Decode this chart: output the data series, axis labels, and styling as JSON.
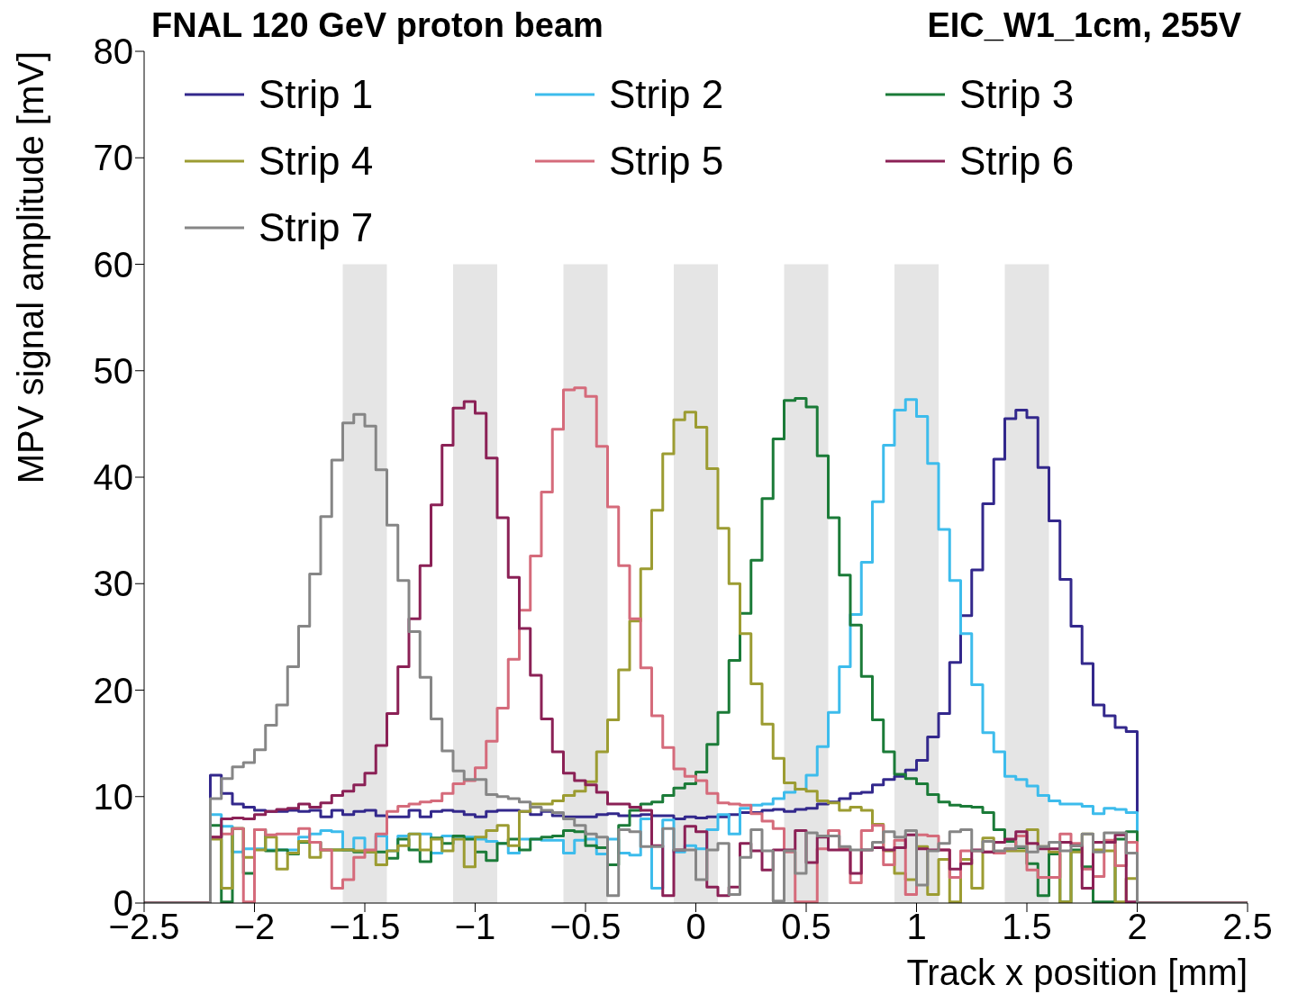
{
  "chart_data": {
    "type": "step",
    "title": "FNAL 120 GeV proton beam",
    "subtitle": "EIC_W1_1cm, 255V",
    "xlabel": "Track x position [mm]",
    "ylabel": "MPV signal amplitude [mV]",
    "x": [
      -2.5,
      -2.2,
      -2.15,
      -2.1,
      -2.05,
      -2.0,
      -1.95,
      -1.9,
      -1.85,
      -1.8,
      -1.75,
      -1.7,
      -1.65,
      -1.6,
      -1.55,
      -1.5,
      -1.45,
      -1.4,
      -1.35,
      -1.3,
      -1.25,
      -1.2,
      -1.15,
      -1.1,
      -1.05,
      -1.0,
      -0.95,
      -0.9,
      -0.85,
      -0.8,
      -0.75,
      -0.7,
      -0.65,
      -0.6,
      -0.55,
      -0.5,
      -0.45,
      -0.4,
      -0.35,
      -0.3,
      -0.25,
      -0.2,
      -0.15,
      -0.1,
      -0.05,
      0,
      0.05,
      0.1,
      0.15,
      0.2,
      0.25,
      0.3,
      0.35,
      0.4,
      0.45,
      0.5,
      0.55,
      0.6,
      0.65,
      0.7,
      0.75,
      0.8,
      0.85,
      0.9,
      0.95,
      1.0,
      1.05,
      1.1,
      1.15,
      1.2,
      1.25,
      1.3,
      1.35,
      1.4,
      1.45,
      1.5,
      1.55,
      1.6,
      1.65,
      1.7,
      1.75,
      1.8,
      1.85,
      1.9,
      1.95,
      2.0,
      2.5
    ],
    "series": [
      {
        "name": "Strip 1",
        "color": "#33288c",
        "values": [
          0,
          12.0,
          10.3,
          9.3,
          9.0,
          8.7,
          8.6,
          8.6,
          8.7,
          8.6,
          8.7,
          8.1,
          8.7,
          8.3,
          8.6,
          8.7,
          8.2,
          8.1,
          8.1,
          8.7,
          8.1,
          8.6,
          8.7,
          8.6,
          8.3,
          8.1,
          8.6,
          8.7,
          8.7,
          8.6,
          8.3,
          8.6,
          8.2,
          8.1,
          8.1,
          8.1,
          8.3,
          8.4,
          8.2,
          8.2,
          8.3,
          8.2,
          8.2,
          7.9,
          8.1,
          8.0,
          8.1,
          8.1,
          8.3,
          8.5,
          8.5,
          8.7,
          8.8,
          8.6,
          8.8,
          8.9,
          9.3,
          9.5,
          9.8,
          10.3,
          10.4,
          11.1,
          11.6,
          11.9,
          12.5,
          13.4,
          15.6,
          17.8,
          22.6,
          27.0,
          31.3,
          37.5,
          41.7,
          45.5,
          46.3,
          45.6,
          40.9,
          35.9,
          30.4,
          26.0,
          22.5,
          18.6,
          17.6,
          16.5,
          16.1,
          0,
          0
        ]
      },
      {
        "name": "Strip 2",
        "color": "#3dbcec",
        "values": [
          0,
          8.3,
          7.2,
          4.8,
          5.1,
          5.1,
          5.0,
          5.0,
          5.0,
          6.2,
          6.5,
          6.8,
          6.7,
          5.0,
          6.1,
          4.9,
          6.3,
          4.9,
          6.3,
          6.5,
          6.5,
          4.7,
          6.3,
          6.2,
          6.2,
          6.0,
          5.8,
          5.6,
          4.7,
          6.0,
          6.0,
          5.9,
          5.9,
          4.7,
          5.9,
          6.0,
          4.6,
          6.0,
          4.7,
          4.5,
          7.9,
          1.4,
          7.8,
          4.8,
          5.4,
          5.1,
          6.9,
          8.3,
          6.5,
          8.9,
          9.2,
          9.3,
          9.8,
          10.4,
          10.7,
          12.0,
          14.7,
          17.9,
          22.2,
          27.1,
          32.0,
          37.7,
          43.0,
          46.3,
          47.3,
          45.7,
          41.3,
          35.1,
          30.3,
          25.3,
          20.5,
          16.0,
          14.2,
          11.9,
          11.6,
          11.0,
          10.1,
          9.6,
          9.3,
          9.3,
          9.1,
          8.4,
          8.9,
          8.8,
          8.5,
          0,
          0
        ]
      },
      {
        "name": "Strip 3",
        "color": "#1b7b38",
        "values": [
          0,
          7.3,
          0.1,
          7.0,
          2.8,
          6.9,
          4.9,
          5.0,
          4.6,
          5.7,
          5.7,
          5.0,
          5.0,
          5.0,
          4.8,
          4.8,
          4.8,
          4.2,
          6.0,
          5.0,
          3.9,
          6.1,
          5.6,
          6.3,
          6.0,
          4.8,
          4.0,
          5.6,
          6.0,
          5.0,
          6.0,
          6.2,
          6.3,
          6.8,
          6.7,
          5.4,
          5.2,
          3.6,
          7.3,
          8.7,
          9.3,
          9.5,
          10.1,
          10.8,
          11.2,
          12.3,
          14.9,
          17.9,
          22.8,
          27.2,
          32.2,
          38.0,
          43.6,
          47.2,
          47.4,
          46.6,
          42.0,
          36.2,
          30.8,
          26.1,
          21.3,
          17.2,
          14.2,
          12.1,
          11.7,
          11.2,
          10.2,
          9.5,
          9.2,
          9.1,
          9.0,
          8.5,
          6.9,
          5.8,
          5.2,
          3.7,
          0.7,
          4.6,
          0.1,
          5.0,
          3.4,
          0.1,
          0.1,
          6.0,
          6.7,
          0,
          0
        ]
      },
      {
        "name": "Strip 4",
        "color": "#9c9c32",
        "values": [
          0,
          6.0,
          1.4,
          7.0,
          4.3,
          5.0,
          6.2,
          3.2,
          4.7,
          5.8,
          4.3,
          5.0,
          5.0,
          5.0,
          4.9,
          4.8,
          3.6,
          4.9,
          5.4,
          6.5,
          5.0,
          6.0,
          4.9,
          6.0,
          3.4,
          6.2,
          6.8,
          7.3,
          5.4,
          8.6,
          9.3,
          9.3,
          9.6,
          10.1,
          10.5,
          11.4,
          14.2,
          17.2,
          21.9,
          26.5,
          31.4,
          36.9,
          42.2,
          45.4,
          46.1,
          44.7,
          40.8,
          35.2,
          30.0,
          25.3,
          20.6,
          16.8,
          13.6,
          11.3,
          10.7,
          10.5,
          9.6,
          9.4,
          8.7,
          9.0,
          8.7,
          7.4,
          4.9,
          2.8,
          2.2,
          5.3,
          0.8,
          4.1,
          0.1,
          4.1,
          1.4,
          6.1,
          4.8,
          4.9,
          4.9,
          6.9,
          5.3,
          4.8,
          0.1,
          4.8,
          6.5,
          5.0,
          4.9,
          0.1,
          2.3,
          0,
          0
        ]
      },
      {
        "name": "Strip 5",
        "color": "#d56b7b",
        "values": [
          0,
          6.2,
          6.5,
          7.0,
          0.1,
          6.9,
          6.4,
          6.5,
          6.5,
          7.0,
          5.7,
          5.0,
          1.4,
          2.2,
          4.3,
          5.0,
          6.5,
          8.6,
          9.1,
          9.3,
          9.5,
          9.6,
          10.3,
          11.2,
          11.5,
          12.7,
          15.2,
          18.3,
          22.9,
          27.5,
          32.6,
          38.6,
          44.5,
          48.2,
          48.4,
          47.6,
          42.9,
          37.2,
          31.7,
          26.7,
          22.1,
          17.6,
          14.6,
          12.6,
          11.9,
          11.5,
          10.3,
          9.4,
          9.3,
          9.2,
          8.4,
          7.7,
          7.0,
          4.8,
          0.1,
          0.1,
          5.1,
          6.8,
          5.1,
          1.9,
          6.8,
          7.3,
          3.6,
          5.9,
          0.8,
          6.4,
          6.3,
          5.0,
          2.4,
          4.9,
          4.9,
          4.8,
          4.7,
          5.1,
          6.3,
          3.1,
          2.4,
          2.4,
          6.5,
          5.6,
          3.2,
          2.5,
          5.9,
          3.5,
          5.7,
          0,
          0
        ]
      },
      {
        "name": "Strip 6",
        "color": "#8b2156",
        "values": [
          0,
          6.2,
          7.9,
          8.0,
          7.9,
          8.3,
          8.6,
          8.8,
          8.9,
          9.3,
          9.0,
          9.4,
          10.1,
          10.5,
          11.1,
          12.2,
          14.8,
          17.8,
          22.2,
          26.7,
          31.7,
          37.4,
          43.0,
          46.5,
          47.1,
          46.0,
          41.8,
          36.2,
          30.6,
          25.8,
          21.4,
          17.3,
          14.2,
          12.2,
          11.5,
          11.1,
          10.4,
          9.3,
          9.3,
          9.0,
          8.7,
          5.4,
          0.7,
          5.0,
          7.2,
          6.7,
          1.5,
          0.7,
          1.5,
          5.6,
          4.9,
          3.1,
          5.0,
          5.0,
          6.8,
          3.8,
          6.2,
          5.0,
          5.0,
          2.8,
          5.0,
          5.2,
          5.0,
          5.2,
          6.4,
          5.1,
          5.0,
          5.0,
          3.2,
          3.7,
          5.0,
          4.8,
          5.7,
          6.0,
          6.7,
          5.6,
          5.1,
          5.1,
          5.7,
          5.4,
          1.4,
          5.7,
          5.7,
          6.4,
          0.1,
          0,
          0
        ]
      },
      {
        "name": "Strip 7",
        "color": "#868686",
        "values": [
          0,
          9.8,
          11.7,
          12.8,
          13.2,
          14.4,
          16.7,
          18.6,
          22.2,
          26.0,
          30.9,
          36.3,
          41.6,
          45.1,
          45.9,
          44.8,
          40.7,
          35.5,
          30.3,
          25.5,
          21.2,
          17.3,
          14.3,
          12.4,
          11.6,
          11.6,
          10.2,
          10.0,
          9.8,
          9.5,
          9.0,
          8.7,
          8.5,
          7.9,
          7.3,
          6.5,
          6.2,
          0.7,
          6.9,
          6.7,
          5.3,
          5.3,
          7.0,
          5.0,
          5.0,
          2.2,
          5.0,
          5.6,
          0.8,
          4.3,
          6.9,
          4.9,
          0.2,
          4.9,
          2.8,
          6.6,
          6.3,
          6.3,
          5.3,
          5.0,
          5.0,
          5.7,
          6.7,
          6.2,
          6.8,
          1.7,
          4.9,
          5.6,
          6.7,
          6.9,
          4.9,
          5.8,
          4.9,
          5.1,
          5.3,
          4.8,
          5.3,
          5.7,
          4.9,
          5.4,
          6.5,
          4.8,
          6.6,
          6.6,
          4.7,
          0,
          0
        ]
      }
    ],
    "xlim": [
      -2.5,
      2.5
    ],
    "xticks": [
      {
        "value": -2.5,
        "label": "−2.5"
      },
      {
        "value": -2,
        "label": "−2"
      },
      {
        "value": -1.5,
        "label": "−1.5"
      },
      {
        "value": -1,
        "label": "−1"
      },
      {
        "value": -0.5,
        "label": "−0.5"
      },
      0,
      0.5,
      1,
      1.5,
      2,
      2.5
    ],
    "ylim": [
      0,
      80
    ],
    "yticks": [
      0,
      10,
      20,
      30,
      40,
      50,
      60,
      70,
      80
    ],
    "bands": [
      {
        "axis": "x",
        "from": -1.6,
        "to": -1.4,
        "color": "#e5e5e5"
      },
      {
        "axis": "x",
        "from": -1.1,
        "to": -0.9,
        "color": "#e5e5e5"
      },
      {
        "axis": "x",
        "from": -0.6,
        "to": -0.4,
        "color": "#e5e5e5"
      },
      {
        "axis": "x",
        "from": -0.1,
        "to": 0.1,
        "color": "#e5e5e5"
      },
      {
        "axis": "x",
        "from": 0.4,
        "to": 0.6,
        "color": "#e5e5e5"
      },
      {
        "axis": "x",
        "from": 0.9,
        "to": 1.1,
        "color": "#e5e5e5"
      },
      {
        "axis": "x",
        "from": 1.4,
        "to": 1.6,
        "color": "#e5e5e5"
      }
    ],
    "legend": "top"
  }
}
